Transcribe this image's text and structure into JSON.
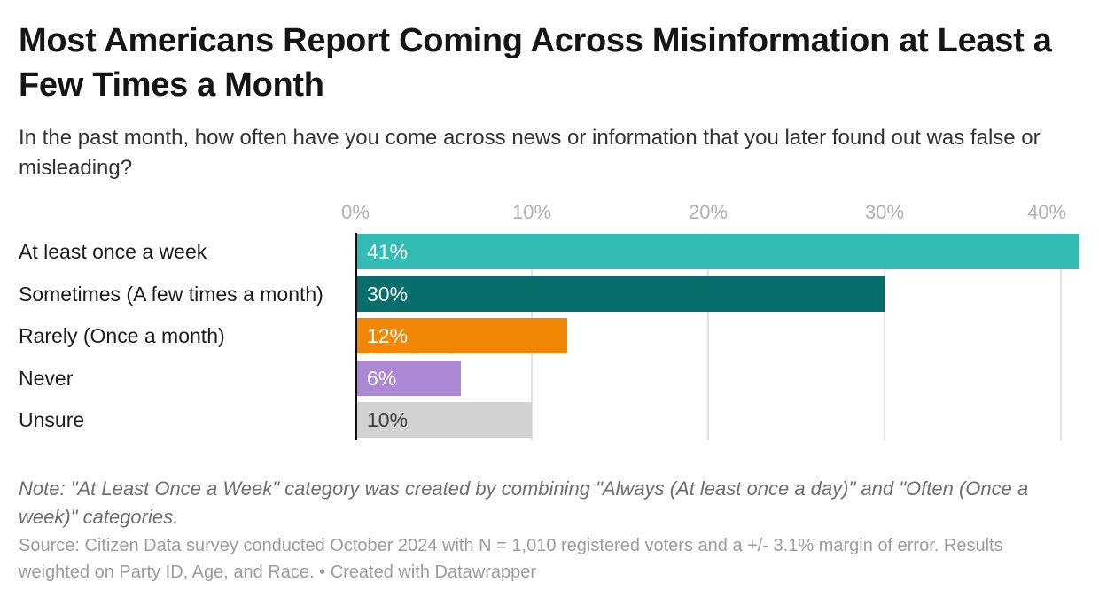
{
  "header": {
    "title": "Most Americans Report Coming Across Misinformation at Least a Few Times a Month",
    "description": "In the past month, how often have you come across news or information that you later found out was false or misleading?"
  },
  "chart_data": {
    "type": "bar",
    "orientation": "horizontal",
    "title": "Most Americans Report Coming Across Misinformation at Least a Few Times a Month",
    "categories": [
      "At least once a week",
      "Sometimes (A few times a month)",
      "Rarely (Once a month)",
      "Never",
      "Unsure"
    ],
    "values": [
      41,
      30,
      12,
      6,
      10
    ],
    "value_labels": [
      "41%",
      "30%",
      "12%",
      "6%",
      "10%"
    ],
    "bar_colors": [
      "#33bcb3",
      "#076e6b",
      "#f28705",
      "#ac87d3",
      "#d2d2d2"
    ],
    "value_label_colors": [
      "#ffffff",
      "#ffffff",
      "#ffffff",
      "#ffffff",
      "#3d3d3d"
    ],
    "x_ticks": [
      0,
      10,
      20,
      30,
      40
    ],
    "x_tick_labels": [
      "0%",
      "10%",
      "20%",
      "30%",
      "40%"
    ],
    "xlim": [
      0,
      41
    ],
    "xlabel": "",
    "ylabel": "",
    "grid": "vertical",
    "axis_position": "top",
    "legend": "none"
  },
  "footer": {
    "note": "Note: \"At Least Once a Week\" category was created by combining \"Always (At least once a day)\" and \"Often (Once a week)\" categories.",
    "source": "Source: Citizen Data survey conducted October 2024 with N = 1,010 registered voters and a +/- 3.1% margin of error. Results weighted on Party ID, Age, and Race.",
    "separator": "•",
    "credit": "Created with Datawrapper"
  },
  "colors": {
    "background": "#ffffff",
    "title_text": "#151515",
    "description_text": "#333333",
    "tick_label": "#b1b1b1",
    "gridline": "#e2e2e2",
    "axis_line": "#111111",
    "note_text": "#6e6e6e",
    "source_text": "#9c9c9c"
  }
}
